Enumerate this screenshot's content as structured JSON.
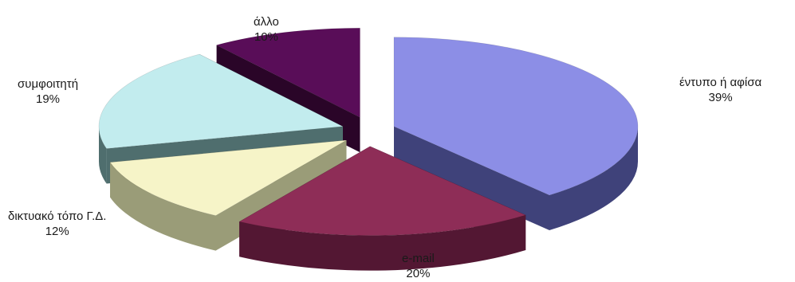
{
  "chart_data": {
    "type": "pie",
    "title": "",
    "slices": [
      {
        "label": "έντυπο ή αφίσα",
        "value": 39,
        "value_label": "39%",
        "top_color": "#8c8ee6",
        "side_color": "#3f427a"
      },
      {
        "label": "e-mail",
        "value": 20,
        "value_label": "20%",
        "top_color": "#8e2d57",
        "side_color": "#531733"
      },
      {
        "label": "δικτυακό τόπο Γ.Δ.",
        "value": 12,
        "value_label": "12%",
        "top_color": "#f6f4c8",
        "side_color": "#9a9c78"
      },
      {
        "label": "συμφοιτητή",
        "value": 19,
        "value_label": "19%",
        "top_color": "#c2ecee",
        "side_color": "#4f6e6e"
      },
      {
        "label": "άλλο",
        "value": 10,
        "value_label": "10%",
        "top_color": "#590d58",
        "side_color": "#2a0528"
      }
    ],
    "style": "exploded-3d-pie"
  }
}
